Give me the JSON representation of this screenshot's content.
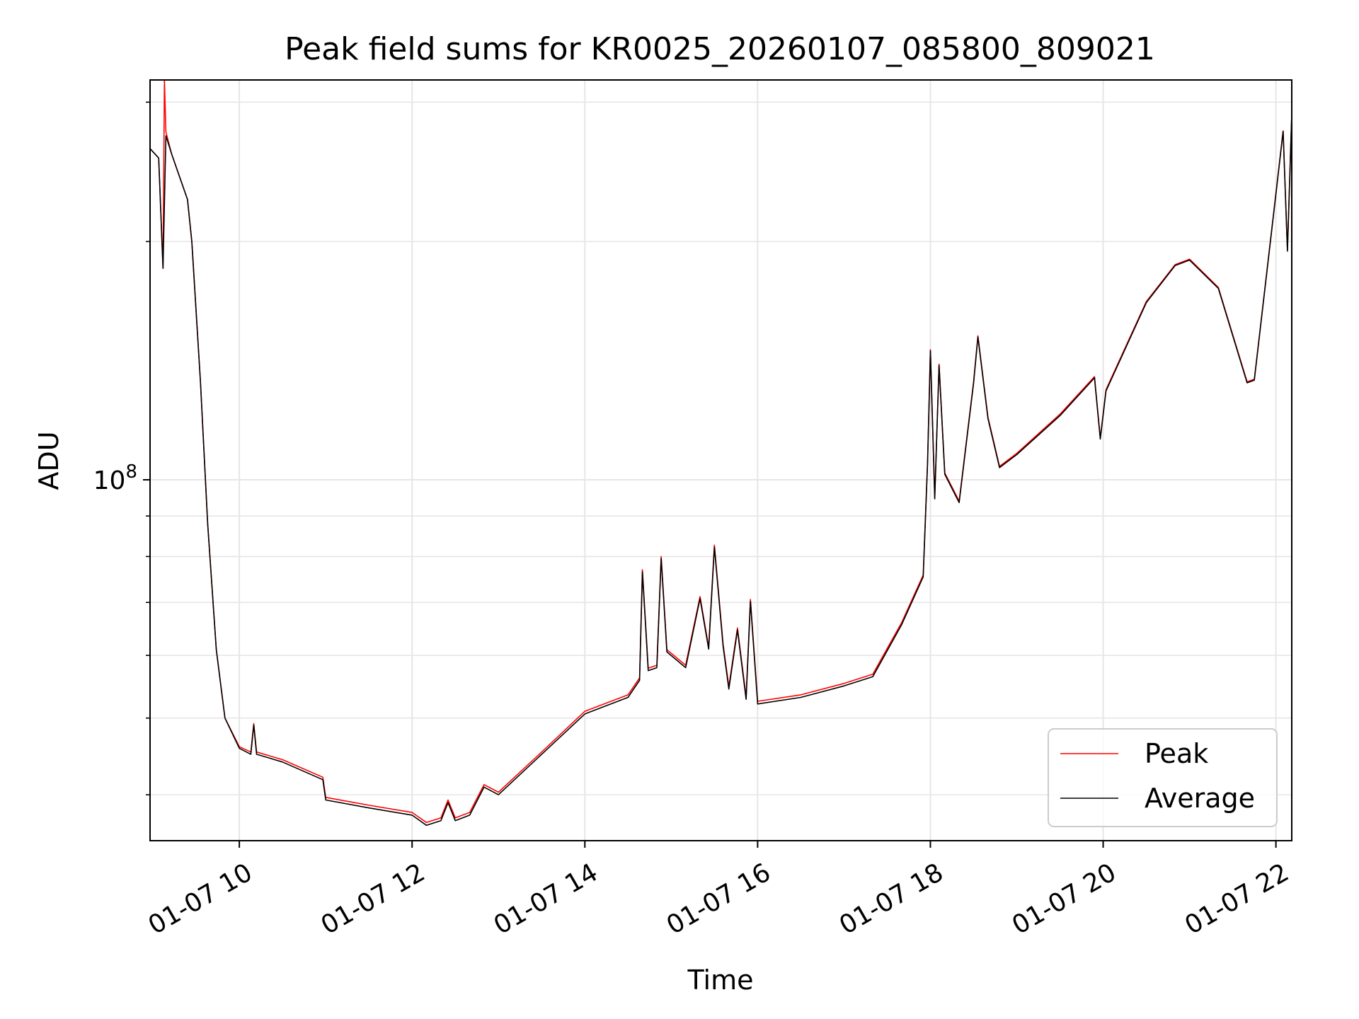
{
  "chart_data": {
    "type": "line",
    "title": "Peak field sums for KR0025_20260107_085800_809021",
    "xlabel": "Time",
    "ylabel": "ADU",
    "xscale": "time",
    "yscale": "log",
    "xlim": [
      "2026-01-07 08:58",
      "2026-01-07 22:11"
    ],
    "ylim": [
      35000000,
      320000000
    ],
    "x_ticks": [
      "2026-01-07 10:00",
      "2026-01-07 12:00",
      "2026-01-07 14:00",
      "2026-01-07 16:00",
      "2026-01-07 18:00",
      "2026-01-07 20:00",
      "2026-01-07 22:00"
    ],
    "x_tick_labels": [
      "01-07 10",
      "01-07 12",
      "01-07 14",
      "01-07 16",
      "01-07 18",
      "01-07 20",
      "01-07 22"
    ],
    "y_major_tick": 100000000,
    "y_major_tick_label": {
      "base": "10",
      "exp": "8"
    },
    "y_minor_ticks": [
      40000000,
      50000000,
      60000000,
      70000000,
      80000000,
      90000000,
      200000000,
      300000000
    ],
    "grid": true,
    "legend": {
      "position": "lower-right",
      "entries": [
        "Peak",
        "Average"
      ]
    },
    "series": [
      {
        "name": "Peak",
        "color": "#ff0000",
        "points": [
          [
            "2026-01-07 08:58",
            262000000
          ],
          [
            "2026-01-07 09:04",
            255000000
          ],
          [
            "2026-01-07 09:07",
            185000000
          ],
          [
            "2026-01-07 09:08",
            320000000
          ],
          [
            "2026-01-07 09:09",
            275000000
          ],
          [
            "2026-01-07 09:13",
            258000000
          ],
          [
            "2026-01-07 09:19",
            240000000
          ],
          [
            "2026-01-07 09:24",
            226000000
          ],
          [
            "2026-01-07 09:27",
            200000000
          ],
          [
            "2026-01-07 09:33",
            133000000
          ],
          [
            "2026-01-07 09:38",
            88000000
          ],
          [
            "2026-01-07 09:44",
            61000000
          ],
          [
            "2026-01-07 09:50",
            50000000
          ],
          [
            "2026-01-07 10:00",
            46000000
          ],
          [
            "2026-01-07 10:08",
            45300000
          ],
          [
            "2026-01-07 10:10",
            49200000
          ],
          [
            "2026-01-07 10:12",
            45300000
          ],
          [
            "2026-01-07 10:30",
            44300000
          ],
          [
            "2026-01-07 10:58",
            42100000
          ],
          [
            "2026-01-07 11:00",
            39700000
          ],
          [
            "2026-01-07 11:30",
            38800000
          ],
          [
            "2026-01-07 12:00",
            38000000
          ],
          [
            "2026-01-07 12:10",
            36900000
          ],
          [
            "2026-01-07 12:20",
            37400000
          ],
          [
            "2026-01-07 12:25",
            39400000
          ],
          [
            "2026-01-07 12:30",
            37400000
          ],
          [
            "2026-01-07 12:40",
            38000000
          ],
          [
            "2026-01-07 12:50",
            41200000
          ],
          [
            "2026-01-07 13:00",
            40300000
          ],
          [
            "2026-01-07 13:30",
            45300000
          ],
          [
            "2026-01-07 14:00",
            51000000
          ],
          [
            "2026-01-07 14:30",
            53500000
          ],
          [
            "2026-01-07 14:38",
            56200000
          ],
          [
            "2026-01-07 14:40",
            77000000
          ],
          [
            "2026-01-07 14:44",
            57800000
          ],
          [
            "2026-01-07 14:50",
            58300000
          ],
          [
            "2026-01-07 14:53",
            80000000
          ],
          [
            "2026-01-07 14:57",
            61000000
          ],
          [
            "2026-01-07 15:10",
            58300000
          ],
          [
            "2026-01-07 15:20",
            71200000
          ],
          [
            "2026-01-07 15:26",
            61500000
          ],
          [
            "2026-01-07 15:30",
            82700000
          ],
          [
            "2026-01-07 15:36",
            62000000
          ],
          [
            "2026-01-07 15:40",
            54800000
          ],
          [
            "2026-01-07 15:46",
            65000000
          ],
          [
            "2026-01-07 15:52",
            53200000
          ],
          [
            "2026-01-07 15:55",
            70600000
          ],
          [
            "2026-01-07 16:00",
            52500000
          ],
          [
            "2026-01-07 16:30",
            53500000
          ],
          [
            "2026-01-07 17:00",
            55300000
          ],
          [
            "2026-01-07 17:20",
            56800000
          ],
          [
            "2026-01-07 17:40",
            66000000
          ],
          [
            "2026-01-07 17:55",
            75800000
          ],
          [
            "2026-01-07 17:58",
            105000000
          ],
          [
            "2026-01-07 18:00",
            146000000
          ],
          [
            "2026-01-07 18:03",
            95000000
          ],
          [
            "2026-01-07 18:06",
            140000000
          ],
          [
            "2026-01-07 18:10",
            102000000
          ],
          [
            "2026-01-07 18:20",
            94000000
          ],
          [
            "2026-01-07 18:30",
            133000000
          ],
          [
            "2026-01-07 18:33",
            152000000
          ],
          [
            "2026-01-07 18:40",
            120000000
          ],
          [
            "2026-01-07 18:48",
            104000000
          ],
          [
            "2026-01-07 19:00",
            108000000
          ],
          [
            "2026-01-07 19:30",
            121000000
          ],
          [
            "2026-01-07 19:54",
            135000000
          ],
          [
            "2026-01-07 19:58",
            113000000
          ],
          [
            "2026-01-07 20:02",
            130000000
          ],
          [
            "2026-01-07 20:30",
            168000000
          ],
          [
            "2026-01-07 20:50",
            187000000
          ],
          [
            "2026-01-07 21:00",
            190000000
          ],
          [
            "2026-01-07 21:20",
            175000000
          ],
          [
            "2026-01-07 21:40",
            133000000
          ],
          [
            "2026-01-07 21:45",
            134000000
          ],
          [
            "2026-01-07 22:00",
            230000000
          ],
          [
            "2026-01-07 22:05",
            276000000
          ],
          [
            "2026-01-07 22:08",
            195000000
          ],
          [
            "2026-01-07 22:11",
            290000000
          ]
        ]
      },
      {
        "name": "Average",
        "color": "#000000",
        "points": [
          [
            "2026-01-07 08:58",
            262000000
          ],
          [
            "2026-01-07 09:04",
            255000000
          ],
          [
            "2026-01-07 09:07",
            185000000
          ],
          [
            "2026-01-07 09:09",
            272000000
          ],
          [
            "2026-01-07 09:13",
            258000000
          ],
          [
            "2026-01-07 09:19",
            240000000
          ],
          [
            "2026-01-07 09:24",
            226000000
          ],
          [
            "2026-01-07 09:27",
            200000000
          ],
          [
            "2026-01-07 09:33",
            133000000
          ],
          [
            "2026-01-07 09:38",
            88000000
          ],
          [
            "2026-01-07 09:44",
            61000000
          ],
          [
            "2026-01-07 09:50",
            50000000
          ],
          [
            "2026-01-07 10:00",
            45800000
          ],
          [
            "2026-01-07 10:08",
            45000000
          ],
          [
            "2026-01-07 10:10",
            49000000
          ],
          [
            "2026-01-07 10:12",
            45000000
          ],
          [
            "2026-01-07 10:30",
            44000000
          ],
          [
            "2026-01-07 10:58",
            41800000
          ],
          [
            "2026-01-07 11:00",
            39400000
          ],
          [
            "2026-01-07 11:30",
            38500000
          ],
          [
            "2026-01-07 12:00",
            37700000
          ],
          [
            "2026-01-07 12:10",
            36600000
          ],
          [
            "2026-01-07 12:20",
            37100000
          ],
          [
            "2026-01-07 12:25",
            39100000
          ],
          [
            "2026-01-07 12:30",
            37100000
          ],
          [
            "2026-01-07 12:40",
            37700000
          ],
          [
            "2026-01-07 12:50",
            40900000
          ],
          [
            "2026-01-07 13:00",
            40000000
          ],
          [
            "2026-01-07 13:30",
            45000000
          ],
          [
            "2026-01-07 14:00",
            50600000
          ],
          [
            "2026-01-07 14:30",
            53100000
          ],
          [
            "2026-01-07 14:38",
            55800000
          ],
          [
            "2026-01-07 14:40",
            76500000
          ],
          [
            "2026-01-07 14:44",
            57400000
          ],
          [
            "2026-01-07 14:50",
            57900000
          ],
          [
            "2026-01-07 14:53",
            79500000
          ],
          [
            "2026-01-07 14:57",
            60600000
          ],
          [
            "2026-01-07 15:10",
            57900000
          ],
          [
            "2026-01-07 15:20",
            70800000
          ],
          [
            "2026-01-07 15:26",
            61100000
          ],
          [
            "2026-01-07 15:30",
            82200000
          ],
          [
            "2026-01-07 15:36",
            61600000
          ],
          [
            "2026-01-07 15:40",
            54400000
          ],
          [
            "2026-01-07 15:46",
            64600000
          ],
          [
            "2026-01-07 15:52",
            52800000
          ],
          [
            "2026-01-07 15:55",
            70200000
          ],
          [
            "2026-01-07 16:00",
            52100000
          ],
          [
            "2026-01-07 16:30",
            53100000
          ],
          [
            "2026-01-07 17:00",
            54900000
          ],
          [
            "2026-01-07 17:20",
            56400000
          ],
          [
            "2026-01-07 17:40",
            65600000
          ],
          [
            "2026-01-07 17:55",
            75400000
          ],
          [
            "2026-01-07 17:58",
            104500000
          ],
          [
            "2026-01-07 18:00",
            145500000
          ],
          [
            "2026-01-07 18:03",
            94600000
          ],
          [
            "2026-01-07 18:06",
            139500000
          ],
          [
            "2026-01-07 18:10",
            101600000
          ],
          [
            "2026-01-07 18:20",
            93600000
          ],
          [
            "2026-01-07 18:30",
            132500000
          ],
          [
            "2026-01-07 18:33",
            151500000
          ],
          [
            "2026-01-07 18:40",
            119500000
          ],
          [
            "2026-01-07 18:48",
            103600000
          ],
          [
            "2026-01-07 19:00",
            107600000
          ],
          [
            "2026-01-07 19:30",
            120500000
          ],
          [
            "2026-01-07 19:54",
            134500000
          ],
          [
            "2026-01-07 19:58",
            112600000
          ],
          [
            "2026-01-07 20:02",
            129500000
          ],
          [
            "2026-01-07 20:30",
            167500000
          ],
          [
            "2026-01-07 20:50",
            186500000
          ],
          [
            "2026-01-07 21:00",
            189500000
          ],
          [
            "2026-01-07 21:20",
            174500000
          ],
          [
            "2026-01-07 21:40",
            132600000
          ],
          [
            "2026-01-07 21:45",
            133600000
          ],
          [
            "2026-01-07 22:00",
            229500000
          ],
          [
            "2026-01-07 22:05",
            275500000
          ],
          [
            "2026-01-07 22:08",
            194500000
          ],
          [
            "2026-01-07 22:11",
            289500000
          ]
        ]
      }
    ]
  }
}
